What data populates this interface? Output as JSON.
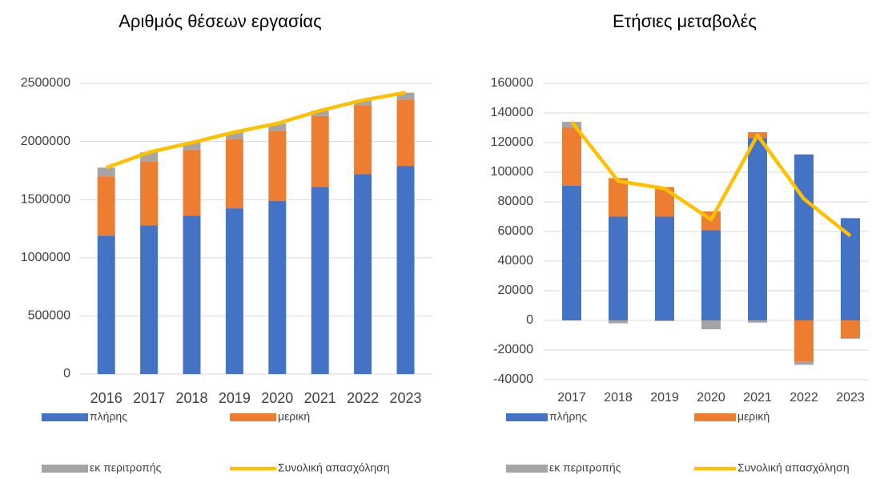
{
  "chart_data": [
    {
      "type": "bar",
      "stacked": true,
      "title": "Αριθμός θέσεων εργασίας",
      "categories": [
        "2016",
        "2017",
        "2018",
        "2019",
        "2020",
        "2021",
        "2022",
        "2023"
      ],
      "ylim": [
        0,
        2500000
      ],
      "yticks": [
        0,
        500000,
        1000000,
        1500000,
        2000000,
        2500000
      ],
      "grid": true,
      "series": [
        {
          "name": "πλήρης",
          "color": "#4472c4",
          "values": [
            1190000,
            1280000,
            1360000,
            1425000,
            1490000,
            1610000,
            1720000,
            1790000
          ]
        },
        {
          "name": "μερική",
          "color": "#ed7d31",
          "values": [
            510000,
            550000,
            570000,
            595000,
            600000,
            610000,
            590000,
            570000
          ]
        },
        {
          "name": "εκ περιτροπής",
          "color": "#a5a5a5",
          "values": [
            75000,
            77000,
            60000,
            60000,
            65000,
            45000,
            45000,
            60000
          ]
        },
        {
          "name": "Συνολική απασχόληση",
          "color": "#ffc000",
          "type": "line",
          "values": [
            1775000,
            1907000,
            1990000,
            2080000,
            2155000,
            2265000,
            2355000,
            2420000
          ]
        }
      ]
    },
    {
      "type": "bar",
      "stacked": true,
      "title": "Ετήσιες μεταβολές",
      "categories": [
        "2017",
        "2018",
        "2019",
        "2020",
        "2021",
        "2022",
        "2023"
      ],
      "ylim": [
        -40000,
        160000
      ],
      "yticks": [
        -40000,
        -20000,
        0,
        20000,
        40000,
        60000,
        80000,
        100000,
        120000,
        140000,
        160000
      ],
      "grid": true,
      "series": [
        {
          "name": "πλήρης",
          "color": "#4472c4",
          "values": [
            91000,
            70000,
            70000,
            61000,
            123000,
            112000,
            69000
          ]
        },
        {
          "name": "μερική",
          "color": "#ed7d31",
          "values": [
            39000,
            26000,
            20000,
            12500,
            4000,
            -28000,
            -12000
          ]
        },
        {
          "name": "εκ περιτροπής",
          "color": "#a5a5a5",
          "values": [
            4000,
            -2000,
            -500,
            -6000,
            -1500,
            -2000,
            -500
          ]
        },
        {
          "name": "Συνολική απασχόληση",
          "color": "#ffc000",
          "type": "line",
          "values": [
            134000,
            94000,
            89000,
            68000,
            125000,
            82000,
            57000
          ]
        }
      ]
    }
  ]
}
